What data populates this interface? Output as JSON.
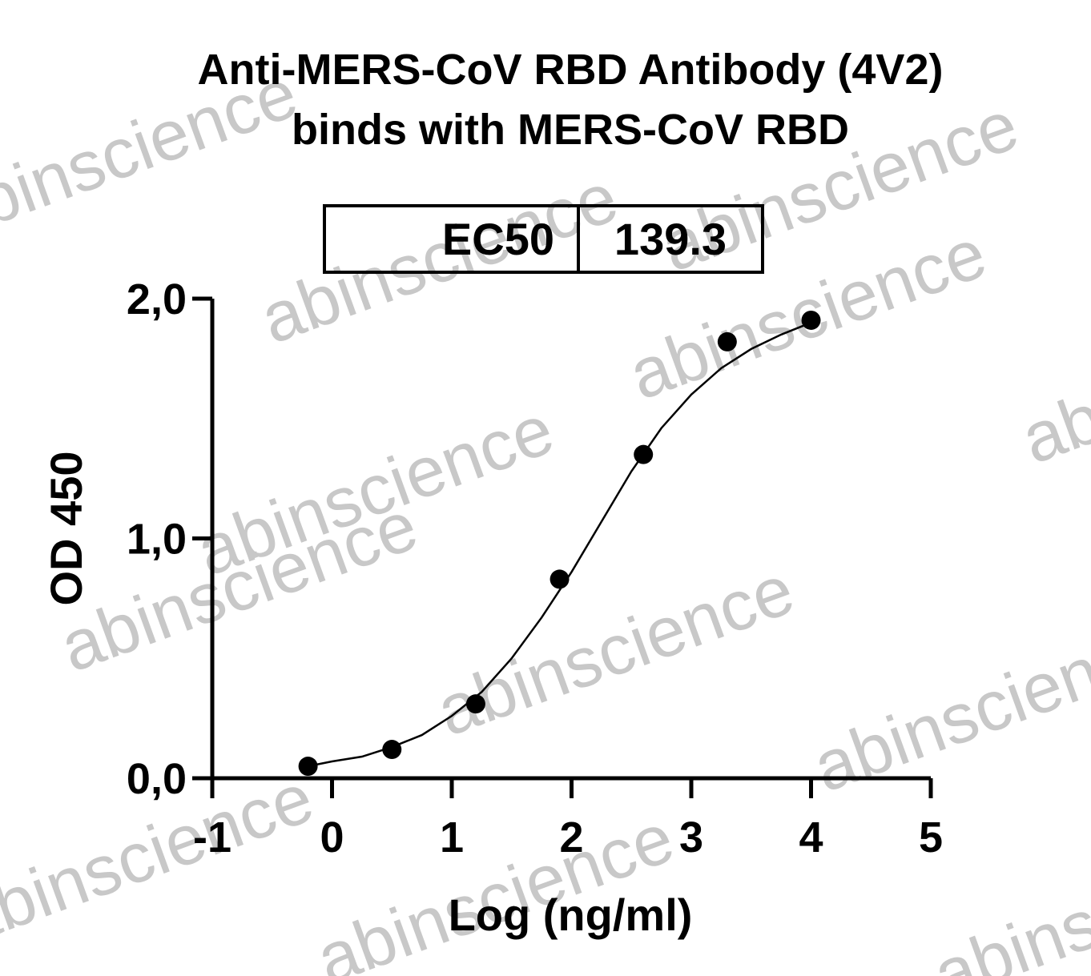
{
  "chart_data": {
    "type": "scatter",
    "title": [
      "Anti-MERS-CoV RBD Antibody (4V2)",
      "binds with MERS-CoV RBD"
    ],
    "x_label": "Log (ng/ml)",
    "y_label": "OD 450",
    "ec50": {
      "label": "EC50",
      "value": 139.3
    },
    "watermark": "abinscience",
    "xlim": [
      -1,
      5
    ],
    "xticks": [
      -1,
      0,
      1,
      2,
      3,
      4,
      5
    ],
    "ylim": [
      0,
      2
    ],
    "yticks": [
      {
        "value": 0,
        "label": "0,0"
      },
      {
        "value": 1,
        "label": "1,0"
      },
      {
        "value": 2,
        "label": "2,0"
      }
    ],
    "series": [
      {
        "name": "data",
        "mode": "markers",
        "color": "#000000",
        "x": [
          -0.2,
          0.5,
          1.2,
          1.9,
          2.6,
          3.3,
          4.0
        ],
        "values": [
          0.05,
          0.12,
          0.31,
          0.83,
          1.35,
          1.82,
          1.91
        ]
      },
      {
        "name": "fit",
        "mode": "line",
        "color": "#000000",
        "x": [
          -0.2,
          0,
          0.25,
          0.5,
          0.75,
          1.0,
          1.25,
          1.5,
          1.75,
          2.0,
          2.25,
          2.5,
          2.75,
          3.0,
          3.25,
          3.5,
          3.75,
          4.0
        ],
        "values": [
          0.05,
          0.07,
          0.09,
          0.13,
          0.18,
          0.26,
          0.36,
          0.5,
          0.67,
          0.86,
          1.07,
          1.28,
          1.46,
          1.6,
          1.71,
          1.79,
          1.85,
          1.9
        ]
      }
    ]
  }
}
